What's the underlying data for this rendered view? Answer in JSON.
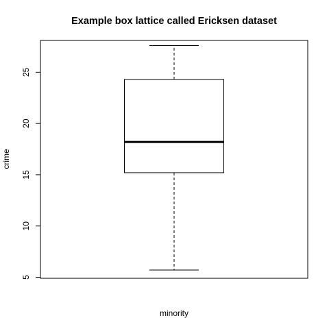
{
  "chart_data": {
    "type": "box",
    "title": "Example box lattice called Ericksen dataset",
    "xlabel": "minority",
    "ylabel": "crime",
    "ylim": [
      4.9,
      28.1
    ],
    "yticks": [
      5,
      10,
      15,
      20,
      25
    ],
    "grid": false,
    "box": {
      "whisker_low": 5.7,
      "q1": 15.2,
      "median": 18.2,
      "q3": 24.3,
      "whisker_high": 27.6
    },
    "colors": {
      "line": "#000000",
      "background": "#ffffff"
    }
  }
}
